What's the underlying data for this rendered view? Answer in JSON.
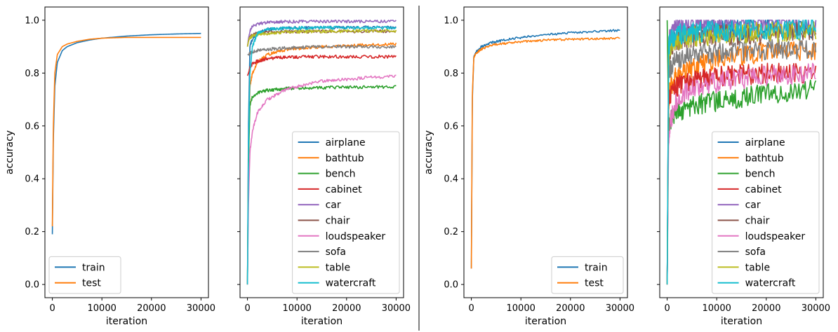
{
  "colors": {
    "train": "#1f77b4",
    "test": "#ff7f0e",
    "airplane": "#1f77b4",
    "bathtub": "#ff7f0e",
    "bench": "#2ca02c",
    "cabinet": "#d62728",
    "car": "#9467bd",
    "chair": "#8c564b",
    "loudspeaker": "#e377c2",
    "sofa": "#7f7f7f",
    "table": "#bcbd22",
    "watercraft": "#17becf"
  },
  "chart_data": [
    {
      "type": "line",
      "xlabel": "iteration",
      "ylabel": "accuracy",
      "xlim": [
        -1500,
        31500
      ],
      "ylim": [
        -0.05,
        1.05
      ],
      "xticks": [
        0,
        10000,
        20000,
        30000
      ],
      "yticks": [
        0.0,
        0.2,
        0.4,
        0.6,
        0.8,
        1.0
      ],
      "xtick_labels": [
        "0",
        "10000",
        "20000",
        "30000"
      ],
      "ytick_labels": [
        "0.0",
        "0.2",
        "0.4",
        "0.6",
        "0.8",
        "1.0"
      ],
      "legend": "lower-left",
      "series": [
        {
          "name": "train",
          "color": "#1f77b4",
          "x": [
            0,
            200,
            500,
            1000,
            2000,
            3000,
            5000,
            7500,
            10000,
            15000,
            20000,
            25000,
            30000
          ],
          "y": [
            0.19,
            0.55,
            0.75,
            0.84,
            0.885,
            0.9,
            0.915,
            0.925,
            0.932,
            0.94,
            0.945,
            0.948,
            0.95
          ]
        },
        {
          "name": "test",
          "color": "#ff7f0e",
          "x": [
            0,
            200,
            500,
            1000,
            2000,
            3000,
            5000,
            7500,
            10000,
            15000,
            20000,
            25000,
            30000
          ],
          "y": [
            0.22,
            0.6,
            0.8,
            0.87,
            0.9,
            0.91,
            0.92,
            0.928,
            0.932,
            0.935,
            0.935,
            0.935,
            0.935
          ]
        }
      ]
    },
    {
      "type": "line",
      "xlabel": "iteration",
      "ylabel": "",
      "xlim": [
        -1500,
        31500
      ],
      "ylim": [
        -0.05,
        1.05
      ],
      "xticks": [
        0,
        10000,
        20000,
        30000
      ],
      "yticks": [
        0.0,
        0.2,
        0.4,
        0.6,
        0.8,
        1.0
      ],
      "xtick_labels": [
        "0",
        "10000",
        "20000",
        "30000"
      ],
      "ytick_labels": [],
      "legend": "lower-right",
      "noise": 0.006,
      "series": [
        {
          "name": "airplane",
          "color": "#1f77b4",
          "x": [
            0,
            200,
            500,
            1000,
            2000,
            4000,
            8000,
            15000,
            30000
          ],
          "y": [
            0.0,
            0.6,
            0.9,
            0.93,
            0.95,
            0.965,
            0.97,
            0.972,
            0.972
          ]
        },
        {
          "name": "bathtub",
          "color": "#ff7f0e",
          "x": [
            0,
            200,
            500,
            1000,
            2000,
            4000,
            8000,
            15000,
            30000
          ],
          "y": [
            0.0,
            0.5,
            0.75,
            0.8,
            0.84,
            0.87,
            0.89,
            0.9,
            0.91
          ]
        },
        {
          "name": "bench",
          "color": "#2ca02c",
          "x": [
            0,
            200,
            500,
            1000,
            2000,
            4000,
            8000,
            15000,
            30000
          ],
          "y": [
            0.0,
            0.45,
            0.68,
            0.71,
            0.725,
            0.735,
            0.742,
            0.745,
            0.748
          ]
        },
        {
          "name": "cabinet",
          "color": "#d62728",
          "x": [
            0,
            200,
            500,
            1000,
            2000,
            4000,
            8000,
            15000,
            30000
          ],
          "y": [
            0.79,
            0.8,
            0.82,
            0.835,
            0.845,
            0.855,
            0.86,
            0.862,
            0.862
          ]
        },
        {
          "name": "car",
          "color": "#9467bd",
          "x": [
            0,
            200,
            500,
            1000,
            2000,
            4000,
            8000,
            15000,
            30000
          ],
          "y": [
            0.9,
            0.93,
            0.96,
            0.975,
            0.985,
            0.992,
            0.995,
            0.996,
            0.996
          ]
        },
        {
          "name": "chair",
          "color": "#8c564b",
          "x": [
            0,
            200,
            500,
            1000,
            2000,
            4000,
            8000,
            15000,
            30000
          ],
          "y": [
            0.9,
            0.92,
            0.935,
            0.945,
            0.95,
            0.955,
            0.957,
            0.958,
            0.958
          ]
        },
        {
          "name": "loudspeaker",
          "color": "#e377c2",
          "x": [
            0,
            200,
            500,
            1000,
            2000,
            4000,
            8000,
            15000,
            30000
          ],
          "y": [
            0.0,
            0.3,
            0.5,
            0.58,
            0.65,
            0.7,
            0.74,
            0.77,
            0.79
          ]
        },
        {
          "name": "sofa",
          "color": "#7f7f7f",
          "x": [
            0,
            200,
            500,
            1000,
            2000,
            4000,
            8000,
            15000,
            30000
          ],
          "y": [
            0.87,
            0.87,
            0.875,
            0.88,
            0.885,
            0.89,
            0.895,
            0.9,
            0.9
          ]
        },
        {
          "name": "table",
          "color": "#bcbd22",
          "x": [
            0,
            200,
            500,
            1000,
            2000,
            4000,
            8000,
            15000,
            30000
          ],
          "y": [
            0.9,
            0.92,
            0.935,
            0.94,
            0.945,
            0.95,
            0.955,
            0.958,
            0.96
          ]
        },
        {
          "name": "watercraft",
          "color": "#17becf",
          "x": [
            0,
            200,
            500,
            1000,
            2000,
            4000,
            8000,
            15000,
            30000
          ],
          "y": [
            0.0,
            0.5,
            0.8,
            0.9,
            0.95,
            0.965,
            0.97,
            0.972,
            0.972
          ]
        }
      ]
    },
    {
      "type": "line",
      "xlabel": "iteration",
      "ylabel": "accuracy",
      "xlim": [
        -1500,
        31500
      ],
      "ylim": [
        -0.05,
        1.05
      ],
      "xticks": [
        0,
        10000,
        20000,
        30000
      ],
      "yticks": [
        0.0,
        0.2,
        0.4,
        0.6,
        0.8,
        1.0
      ],
      "xtick_labels": [
        "0",
        "10000",
        "20000",
        "30000"
      ],
      "ytick_labels": [
        "0.0",
        "0.2",
        "0.4",
        "0.6",
        "0.8",
        "1.0"
      ],
      "legend": "lower-right",
      "noise": 0.004,
      "series": [
        {
          "name": "train",
          "color": "#1f77b4",
          "x": [
            0,
            200,
            500,
            1000,
            2000,
            4000,
            8000,
            15000,
            20000,
            25000,
            30000
          ],
          "y": [
            0.06,
            0.7,
            0.86,
            0.88,
            0.9,
            0.915,
            0.93,
            0.945,
            0.952,
            0.958,
            0.962
          ]
        },
        {
          "name": "test",
          "color": "#ff7f0e",
          "x": [
            0,
            200,
            500,
            1000,
            2000,
            4000,
            8000,
            15000,
            20000,
            25000,
            30000
          ],
          "y": [
            0.06,
            0.72,
            0.86,
            0.875,
            0.89,
            0.905,
            0.915,
            0.925,
            0.928,
            0.93,
            0.932
          ]
        }
      ]
    },
    {
      "type": "line",
      "xlabel": "iteration",
      "ylabel": "",
      "xlim": [
        -1500,
        31500
      ],
      "ylim": [
        -0.05,
        1.05
      ],
      "xticks": [
        0,
        10000,
        20000,
        30000
      ],
      "yticks": [
        0.0,
        0.2,
        0.4,
        0.6,
        0.8,
        1.0
      ],
      "xtick_labels": [
        "0",
        "10000",
        "20000",
        "30000"
      ],
      "ytick_labels": [],
      "legend": "lower-right",
      "noise": 0.04,
      "series": [
        {
          "name": "airplane",
          "color": "#1f77b4",
          "x": [
            0,
            300,
            700,
            1500,
            3000,
            6000,
            12000,
            20000,
            30000
          ],
          "y": [
            0.0,
            0.8,
            0.92,
            0.94,
            0.95,
            0.96,
            0.965,
            0.97,
            0.97
          ]
        },
        {
          "name": "bathtub",
          "color": "#ff7f0e",
          "x": [
            0,
            300,
            700,
            1500,
            3000,
            6000,
            12000,
            20000,
            30000
          ],
          "y": [
            0.0,
            0.7,
            0.75,
            0.78,
            0.8,
            0.83,
            0.86,
            0.88,
            0.89
          ]
        },
        {
          "name": "bench",
          "color": "#2ca02c",
          "x": [
            0,
            300,
            700,
            1500,
            3000,
            6000,
            12000,
            20000,
            30000
          ],
          "y": [
            1.0,
            0.6,
            0.62,
            0.64,
            0.66,
            0.68,
            0.7,
            0.72,
            0.74
          ]
        },
        {
          "name": "cabinet",
          "color": "#d62728",
          "x": [
            0,
            300,
            700,
            1500,
            3000,
            6000,
            12000,
            20000,
            30000
          ],
          "y": [
            0.0,
            0.7,
            0.72,
            0.74,
            0.76,
            0.78,
            0.79,
            0.8,
            0.8
          ]
        },
        {
          "name": "car",
          "color": "#9467bd",
          "x": [
            0,
            300,
            700,
            1500,
            3000,
            6000,
            12000,
            20000,
            30000
          ],
          "y": [
            0.0,
            0.9,
            0.95,
            0.97,
            0.98,
            0.985,
            0.99,
            0.99,
            0.99
          ]
        },
        {
          "name": "chair",
          "color": "#8c564b",
          "x": [
            0,
            300,
            700,
            1500,
            3000,
            6000,
            12000,
            20000,
            30000
          ],
          "y": [
            0.0,
            0.85,
            0.9,
            0.92,
            0.93,
            0.94,
            0.945,
            0.95,
            0.955
          ]
        },
        {
          "name": "loudspeaker",
          "color": "#e377c2",
          "x": [
            0,
            300,
            700,
            1500,
            3000,
            6000,
            12000,
            20000,
            30000
          ],
          "y": [
            0.0,
            0.55,
            0.62,
            0.68,
            0.72,
            0.75,
            0.77,
            0.79,
            0.8
          ]
        },
        {
          "name": "sofa",
          "color": "#7f7f7f",
          "x": [
            0,
            300,
            700,
            1500,
            3000,
            6000,
            12000,
            20000,
            30000
          ],
          "y": [
            0.0,
            0.8,
            0.82,
            0.84,
            0.86,
            0.87,
            0.88,
            0.89,
            0.89
          ]
        },
        {
          "name": "table",
          "color": "#bcbd22",
          "x": [
            0,
            300,
            700,
            1500,
            3000,
            6000,
            12000,
            20000,
            30000
          ],
          "y": [
            0.0,
            0.85,
            0.9,
            0.92,
            0.93,
            0.94,
            0.95,
            0.955,
            0.96
          ]
        },
        {
          "name": "watercraft",
          "color": "#17becf",
          "x": [
            0,
            300,
            700,
            1500,
            3000,
            6000,
            12000,
            20000,
            30000
          ],
          "y": [
            0.0,
            0.9,
            0.93,
            0.94,
            0.95,
            0.955,
            0.96,
            0.965,
            0.97
          ]
        }
      ]
    }
  ]
}
